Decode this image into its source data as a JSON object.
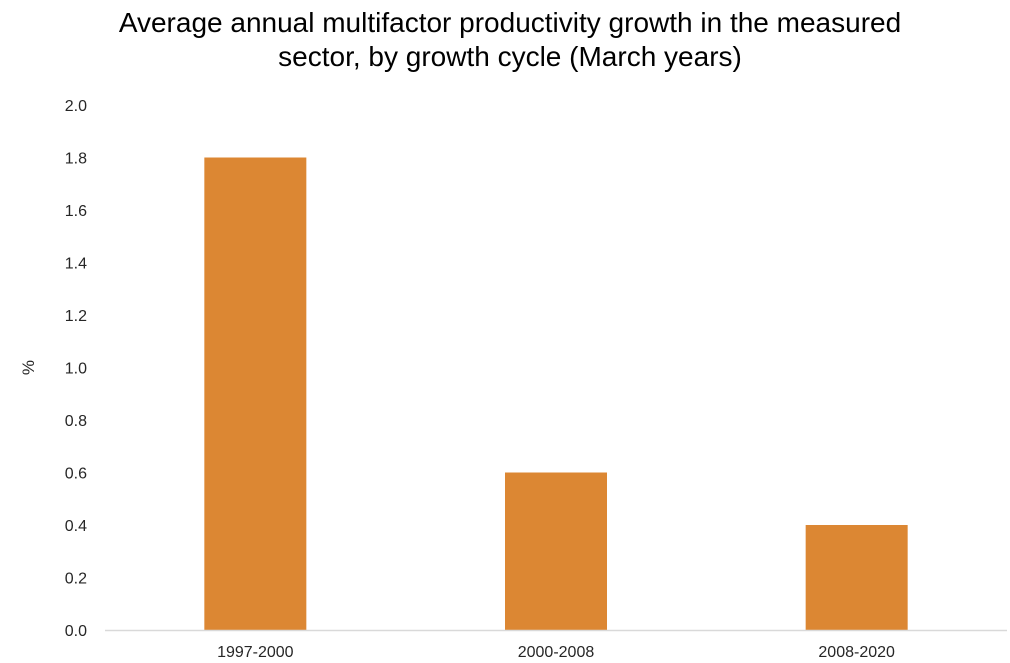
{
  "chart_data": {
    "type": "bar",
    "title": "Average annual multifactor productivity growth in the measured sector, by growth cycle (March years)",
    "xlabel": "",
    "ylabel": "%",
    "categories": [
      "1997-2000",
      "2000-2008",
      "2008-2020"
    ],
    "series": [
      {
        "values": [
          1.8,
          0.6,
          0.4
        ]
      }
    ],
    "ylim": [
      0,
      2.0
    ],
    "yticks": [
      "0.0",
      "0.2",
      "0.4",
      "0.6",
      "0.8",
      "1.0",
      "1.2",
      "1.4",
      "1.6",
      "1.8",
      "2.0"
    ],
    "grid": false,
    "legend": "none",
    "bar_color": "#dc8733",
    "axis_color": "#d9d9d9"
  }
}
